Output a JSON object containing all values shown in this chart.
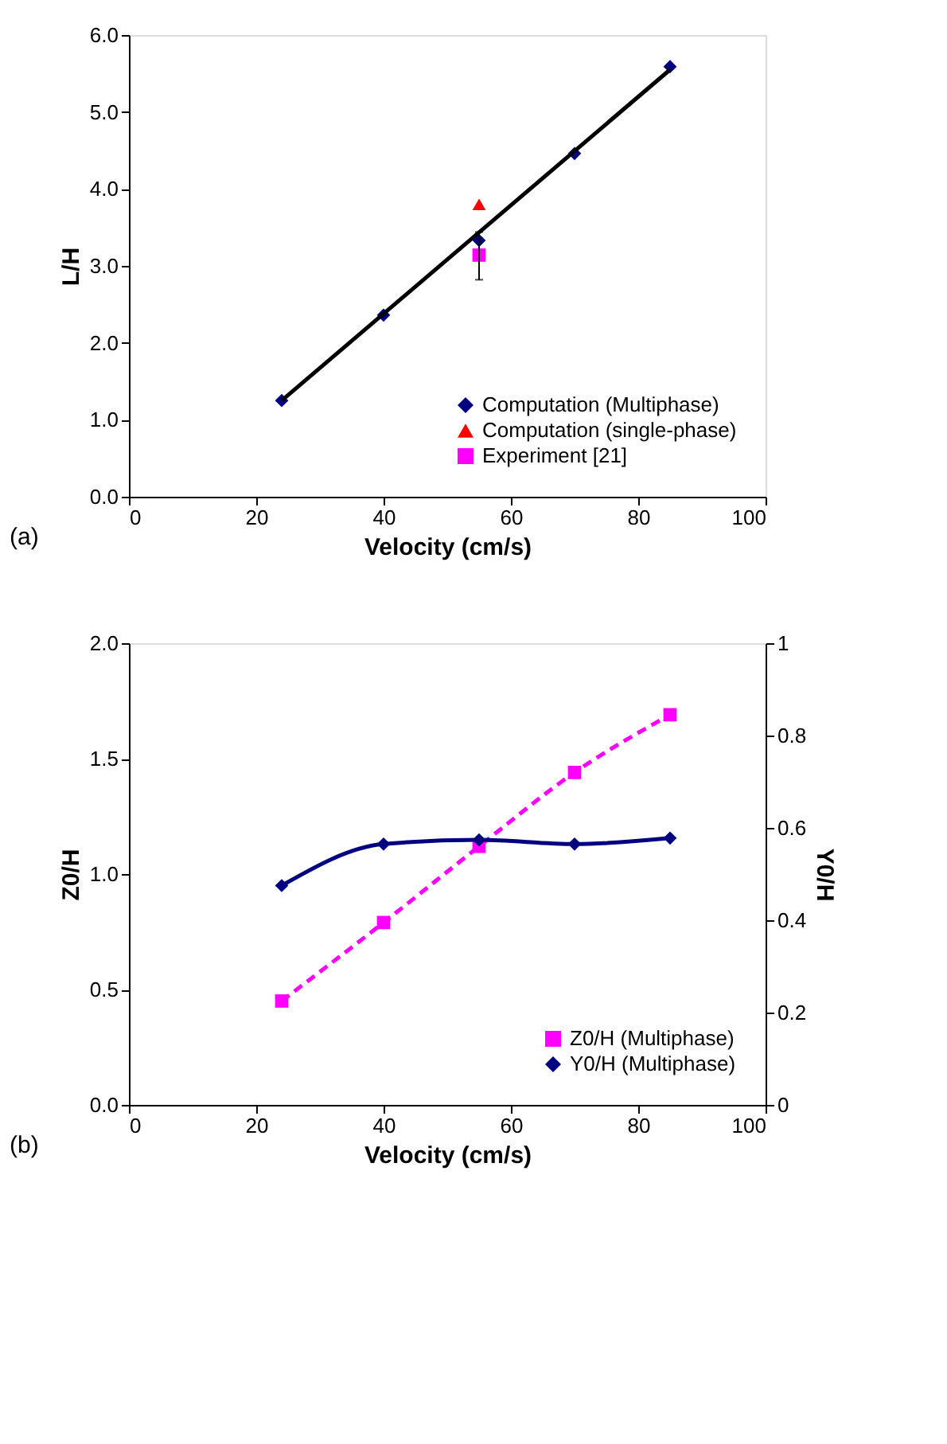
{
  "chart_data": [
    {
      "type": "scatter",
      "xlabel": "Velocity (cm/s)",
      "ylabel": "L/H",
      "annotations": [
        "(a)"
      ],
      "xlim": [
        0,
        100
      ],
      "xticks": [
        0,
        20,
        40,
        60,
        80,
        100
      ],
      "ylim": [
        0,
        6
      ],
      "yticks": [
        {
          "value": 0,
          "label": "0.0"
        },
        {
          "value": 1,
          "label": "1.0"
        },
        {
          "value": 2,
          "label": "2.0"
        },
        {
          "value": 3,
          "label": "3.0"
        },
        {
          "value": 4,
          "label": "4.0"
        },
        {
          "value": 5,
          "label": "5.0"
        },
        {
          "value": 6,
          "label": "6.0"
        }
      ],
      "grid": false,
      "legend": "bottom right",
      "series": [
        {
          "name": "Computation (Multiphase)",
          "color": "#000080",
          "marker": "diamond",
          "x": [
            24,
            40,
            55,
            70,
            85
          ],
          "values": [
            1.25,
            2.36,
            3.33,
            4.46,
            5.59
          ]
        },
        {
          "name": "Computation (single-phase)",
          "color": "#ff0000",
          "marker": "triangle",
          "x": [
            55
          ],
          "values": [
            3.8
          ]
        },
        {
          "name": "Experiment [21]",
          "color": "#ff00ff",
          "marker": "square",
          "x": [
            55
          ],
          "values": [
            3.14
          ],
          "errors": [
            [
              2.82,
              3.44
            ]
          ]
        },
        {
          "type": "line",
          "color": "#000000",
          "x": [
            24,
            85
          ],
          "values": [
            1.25,
            5.55
          ],
          "marker": "none",
          "line_style": "solid"
        }
      ]
    },
    {
      "type": "line",
      "xlabel": "Velocity (cm/s)",
      "ylabel": "Z0/H",
      "y2label": "Y0/H",
      "annotations": [
        "(b)"
      ],
      "xlim": [
        0,
        100
      ],
      "xticks": [
        0,
        20,
        40,
        60,
        80,
        100
      ],
      "ylim": [
        0,
        2
      ],
      "yticks": [
        {
          "value": 0,
          "label": "0.0"
        },
        {
          "value": 0.5,
          "label": "0.5"
        },
        {
          "value": 1,
          "label": "1.0"
        },
        {
          "value": 1.5,
          "label": "1.5"
        },
        {
          "value": 2,
          "label": "2.0"
        }
      ],
      "y2lim": [
        0,
        1
      ],
      "y2ticks": [
        0,
        0.2,
        0.4,
        0.6,
        0.8,
        1
      ],
      "grid": false,
      "legend": "bottom right",
      "series": [
        {
          "name": "Z0/H (Multiphase)",
          "color": "#ff00ff",
          "marker": "square",
          "line_style": "dashed",
          "x": [
            24,
            40,
            55,
            70,
            85
          ],
          "values": [
            0.45,
            0.79,
            1.12,
            1.44,
            1.69
          ]
        },
        {
          "name": "Y0/H (Multiphase)",
          "color": "#000080",
          "marker": "diamond",
          "line_style": "solid",
          "axis": "y2",
          "x": [
            24,
            40,
            55,
            70,
            85
          ],
          "values": [
            0.475,
            0.565,
            0.574,
            0.565,
            0.578
          ]
        }
      ]
    }
  ]
}
